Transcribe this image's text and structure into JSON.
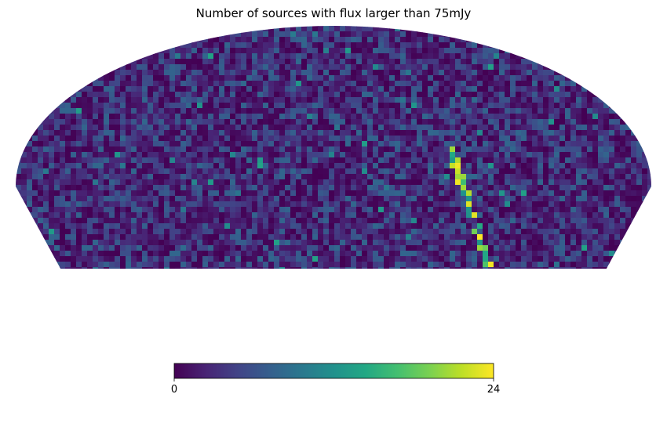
{
  "chart_data": {
    "type": "heatmap",
    "title": "Number of sources with flux larger than 75mJy",
    "projection": "mollweide",
    "coverage": "upper sky only; lower region blank",
    "colormap": "viridis",
    "colorbar": {
      "orientation": "horizontal",
      "min": 0,
      "max": 24,
      "tick_labels": [
        "0",
        "24"
      ]
    },
    "background_level_range": [
      0,
      8
    ],
    "features": [
      {
        "description": "narrow bright streak of high counts on the right side",
        "values_range": [
          12,
          24
        ]
      },
      {
        "description": "scattered isolated moderate-count pixels",
        "values_range": [
          8,
          14
        ]
      }
    ]
  }
}
